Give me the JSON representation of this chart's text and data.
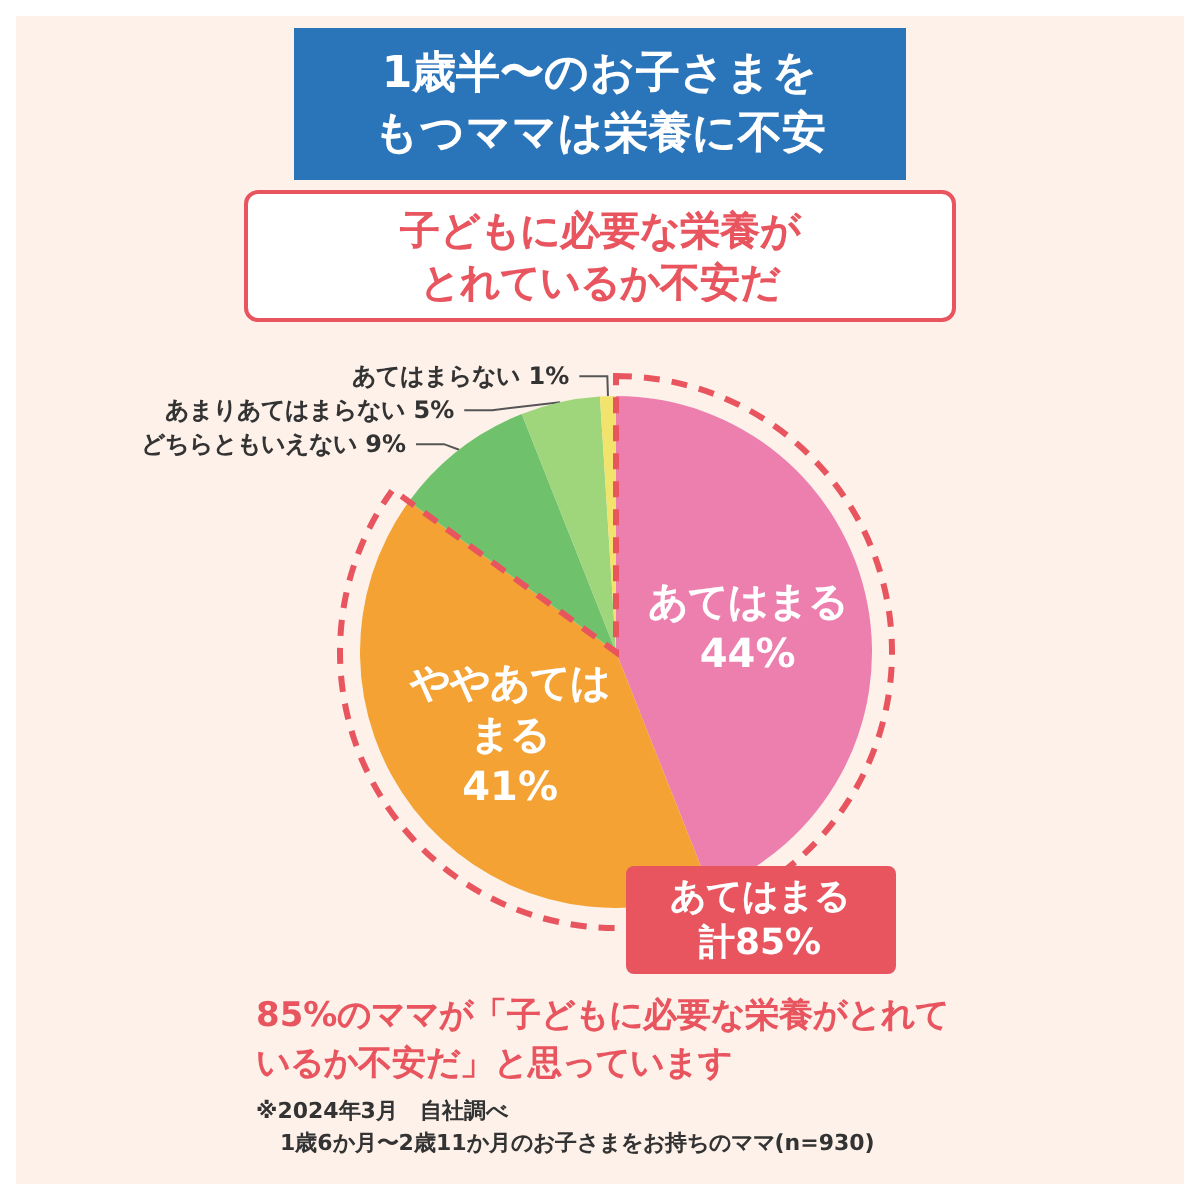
{
  "chart_data": {
    "type": "pie",
    "title": "1歳半〜のお子さまをもつママは栄養に不安",
    "subtitle": "子どもに必要な栄養がとれているか不安だ",
    "categories": [
      "あてはまる",
      "ややあてはまる",
      "どちらともいえない",
      "あまりあてはまらない",
      "あてはまらない"
    ],
    "values": [
      44,
      41,
      9,
      5,
      1
    ],
    "value_labels": [
      "44%",
      "41%",
      "9%",
      "5%",
      "1%"
    ],
    "colors": [
      "#ec7fae",
      "#f3a233",
      "#6fc26b",
      "#9fd67c",
      "#f1e36b"
    ],
    "legend": false,
    "annotations": [
      "あてはまる計85%",
      "85%のママが「子どもに必要な栄養がとれているか不安だ」と思っています",
      "※2024年3月　自社調べ",
      "1歳6か月〜2歳11か月のお子さまをお持ちのママ(n=930)"
    ]
  }
}
